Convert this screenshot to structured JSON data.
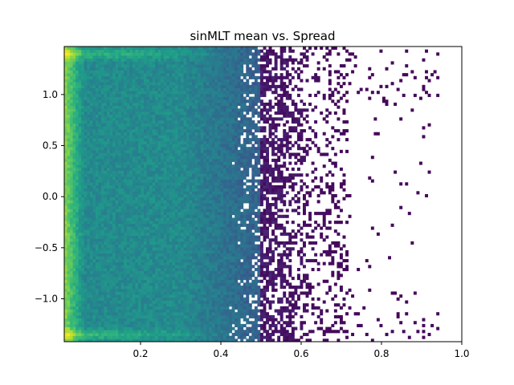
{
  "chart_data": {
    "type": "heatmap",
    "title": "sinMLT mean vs. Spread",
    "xlabel": "",
    "ylabel": "",
    "xlim": [
      0.01,
      1.0
    ],
    "ylim": [
      -1.42,
      1.47
    ],
    "x_ticks": [
      {
        "value": 0.2,
        "label": "0.2"
      },
      {
        "value": 0.4,
        "label": "0.4"
      },
      {
        "value": 0.6,
        "label": "0.6"
      },
      {
        "value": 0.8,
        "label": "0.8"
      },
      {
        "value": 1.0,
        "label": "1.0"
      }
    ],
    "y_ticks": [
      {
        "value": -1.0,
        "label": "−1.0"
      },
      {
        "value": -0.5,
        "label": "−0.5"
      },
      {
        "value": 0.0,
        "label": "0.0"
      },
      {
        "value": 0.5,
        "label": "0.5"
      },
      {
        "value": 1.0,
        "label": "1.0"
      }
    ],
    "colormap": "viridis",
    "bins": {
      "x": 140,
      "y": 100
    },
    "density_profile": {
      "dense_edge_x": [
        0.01,
        0.05
      ],
      "bright_rows_y": [
        1.4,
        -1.35
      ],
      "fade_start_x": 0.45,
      "sparse_region_x": [
        0.5,
        0.72
      ],
      "max_extent_x": 0.94
    }
  }
}
